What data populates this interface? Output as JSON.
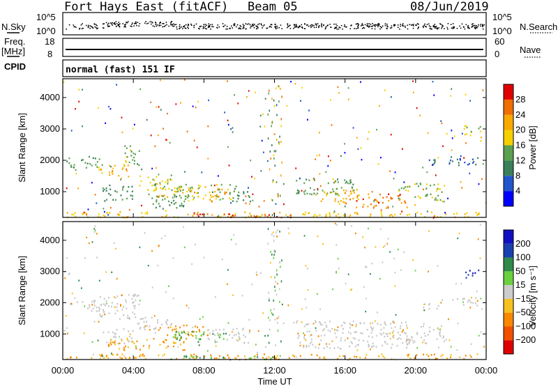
{
  "header": {
    "station": "Fort Hays East (fitACF)",
    "beam": "Beam 05",
    "date": "08/Jun/2019"
  },
  "top_panels": {
    "nsky_label": "N.Sky",
    "nsearch_label": "N.Search",
    "nsky_ticks": [
      "10^5",
      "10^0"
    ],
    "nsearch_ticks": [
      "10^5",
      "10^0"
    ],
    "freq_label": "Freq.",
    "freq_unit": "[MHz]",
    "freq_ticks": [
      "18",
      "8"
    ],
    "nave_label": "Nave",
    "nave_ticks": [
      "60",
      "0"
    ],
    "cpid_label": "CPID",
    "cpid_text": "normal (fast) 151 IF"
  },
  "colors": {
    "power": [
      "#0000ff",
      "#2255cc",
      "#3a7f5a",
      "#5aa050",
      "#f6d000",
      "#f8a800",
      "#f06d00",
      "#e00000"
    ],
    "velocity": [
      "#e00000",
      "#f05000",
      "#f88800",
      "#f5c020",
      "#cccccc",
      "#6ad040",
      "#2e8a4a",
      "#1a40b0",
      "#1010c0"
    ],
    "ground_scatter": "#c8c8c8"
  },
  "chart_data": [
    {
      "type": "heatmap",
      "name": "power",
      "ylabel": "Slant Range [km]",
      "xlabel": "Time UT",
      "x_ticks": [
        "00:00",
        "04:00",
        "08:00",
        "12:00",
        "16:00",
        "20:00",
        "00:00"
      ],
      "y_ticks": [
        1000,
        2000,
        3000,
        4000
      ],
      "ylim": [
        180,
        4600
      ],
      "xlim_hours": [
        0,
        24
      ],
      "colorbar_label": "Power [dB]",
      "colorbar_ticks": [
        "4",
        "8",
        "12",
        "16",
        "20",
        "24",
        "28"
      ],
      "colorbar_range": [
        0,
        30
      ],
      "regions": [
        {
          "t0": 0.2,
          "t1": 2.2,
          "r0": 1750,
          "r1": 2100,
          "val": 12
        },
        {
          "t0": 2.0,
          "t1": 3.8,
          "r0": 1500,
          "r1": 1900,
          "val": 20
        },
        {
          "t0": 3.3,
          "t1": 4.3,
          "r0": 1850,
          "r1": 2500,
          "val": 14
        },
        {
          "t0": 2.2,
          "t1": 4.0,
          "r0": 700,
          "r1": 1250,
          "val": 10
        },
        {
          "t0": 4.2,
          "t1": 6.2,
          "r0": 1050,
          "r1": 1550,
          "val": 16
        },
        {
          "t0": 4.6,
          "t1": 7.0,
          "r0": 500,
          "r1": 950,
          "val": 12
        },
        {
          "t0": 5.2,
          "t1": 8.2,
          "r0": 850,
          "r1": 1200,
          "val": 18
        },
        {
          "t0": 6.2,
          "t1": 9.8,
          "r0": 750,
          "r1": 1250,
          "val": 14
        },
        {
          "t0": 8.2,
          "t1": 9.4,
          "r0": 700,
          "r1": 1100,
          "val": 22
        },
        {
          "t0": 9.4,
          "t1": 10.6,
          "r0": 700,
          "r1": 1200,
          "val": 10
        },
        {
          "t0": 13.2,
          "t1": 16.5,
          "r0": 900,
          "r1": 1450,
          "val": 12
        },
        {
          "t0": 14.5,
          "t1": 16.8,
          "r0": 600,
          "r1": 1100,
          "val": 20
        },
        {
          "t0": 16.5,
          "t1": 19.5,
          "r0": 500,
          "r1": 950,
          "val": 24
        },
        {
          "t0": 19.0,
          "t1": 21.6,
          "r0": 700,
          "r1": 1300,
          "val": 14
        },
        {
          "t0": 20.4,
          "t1": 21.4,
          "r0": 1850,
          "r1": 2050,
          "val": 10
        },
        {
          "t0": 21.8,
          "t1": 23.5,
          "r0": 1850,
          "r1": 2200,
          "val": 8
        },
        {
          "t0": 22.6,
          "t1": 23.7,
          "r0": 2750,
          "r1": 3150,
          "val": 16
        },
        {
          "t0": 0.0,
          "t1": 24.0,
          "r0": 200,
          "r1": 380,
          "val": 18
        },
        {
          "t0": 6.5,
          "t1": 13.0,
          "r0": 200,
          "r1": 350,
          "val": 26
        }
      ]
    },
    {
      "type": "heatmap",
      "name": "velocity",
      "ylabel": "Slant Range [km]",
      "xlabel": "Time UT",
      "x_ticks": [
        "00:00",
        "04:00",
        "08:00",
        "12:00",
        "16:00",
        "20:00",
        "00:00"
      ],
      "y_ticks": [
        1000,
        2000,
        3000,
        4000
      ],
      "ylim": [
        180,
        4600
      ],
      "xlim_hours": [
        0,
        24
      ],
      "colorbar_label": "Velocity [m s⁻¹]",
      "colorbar_ticks": [
        "200",
        "100",
        "50",
        "15",
        "-15",
        "-50",
        "-100",
        "-200"
      ],
      "regions": [
        {
          "t0": 0.2,
          "t1": 2.2,
          "r0": 1750,
          "r1": 2100,
          "cls": "gs"
        },
        {
          "t0": 2.0,
          "t1": 4.3,
          "r0": 1500,
          "r1": 2300,
          "cls": "gs"
        },
        {
          "t0": 2.2,
          "t1": 4.0,
          "r0": 700,
          "r1": 1250,
          "cls": "gs"
        },
        {
          "t0": 4.2,
          "t1": 6.2,
          "r0": 1050,
          "r1": 1550,
          "cls": "gs"
        },
        {
          "t0": 2.5,
          "t1": 7.0,
          "r0": 500,
          "r1": 900,
          "cls": "neg"
        },
        {
          "t0": 4.8,
          "t1": 8.2,
          "r0": 950,
          "r1": 1300,
          "cls": "neg"
        },
        {
          "t0": 6.2,
          "t1": 9.8,
          "r0": 750,
          "r1": 1100,
          "cls": "pos"
        },
        {
          "t0": 8.2,
          "t1": 10.6,
          "r0": 700,
          "r1": 1200,
          "cls": "gs"
        },
        {
          "t0": 13.2,
          "t1": 19.6,
          "r0": 550,
          "r1": 1450,
          "cls": "gs"
        },
        {
          "t0": 19.0,
          "t1": 21.6,
          "r0": 700,
          "r1": 1300,
          "cls": "gs"
        },
        {
          "t0": 20.4,
          "t1": 21.4,
          "r0": 1750,
          "r1": 2000,
          "cls": "gs"
        },
        {
          "t0": 21.8,
          "t1": 23.5,
          "r0": 1850,
          "r1": 2200,
          "cls": "gs"
        },
        {
          "t0": 22.8,
          "t1": 23.6,
          "r0": 2800,
          "r1": 3150,
          "cls": "fastpos"
        },
        {
          "t0": 0.0,
          "t1": 24.0,
          "r0": 200,
          "r1": 380,
          "cls": "neg"
        },
        {
          "t0": 6.5,
          "t1": 13.0,
          "r0": 200,
          "r1": 330,
          "cls": "pos"
        }
      ]
    }
  ]
}
